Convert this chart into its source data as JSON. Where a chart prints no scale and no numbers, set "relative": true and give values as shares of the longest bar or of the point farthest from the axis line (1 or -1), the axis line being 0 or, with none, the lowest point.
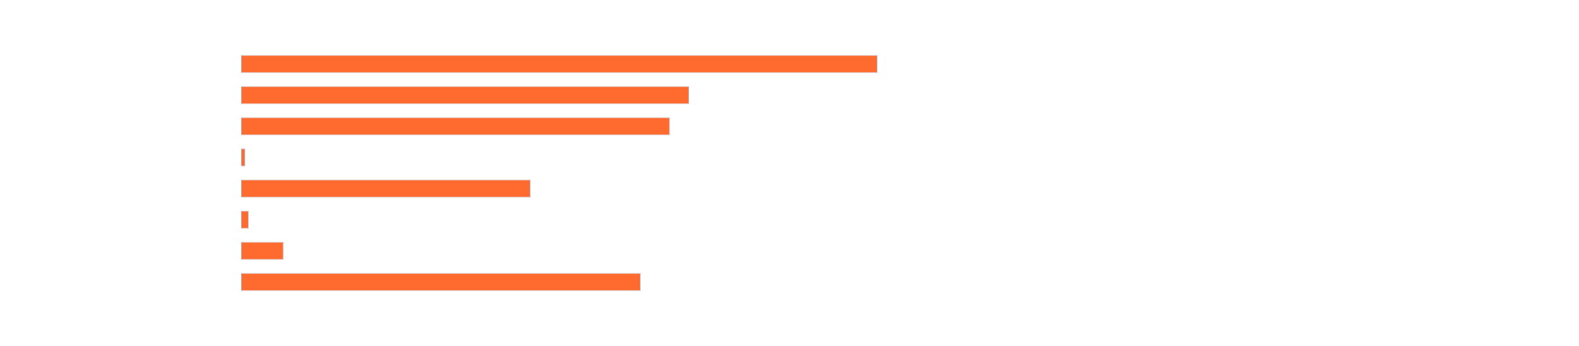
{
  "chart_data": {
    "type": "bar",
    "orientation": "horizontal",
    "relative": true,
    "categories": [
      null,
      null,
      null,
      null,
      null,
      null,
      null,
      null
    ],
    "values": [
      1,
      0.704,
      0.674,
      0.0065,
      0.455,
      0.012,
      0.067,
      0.628
    ],
    "color": "#ff6a2e"
  }
}
